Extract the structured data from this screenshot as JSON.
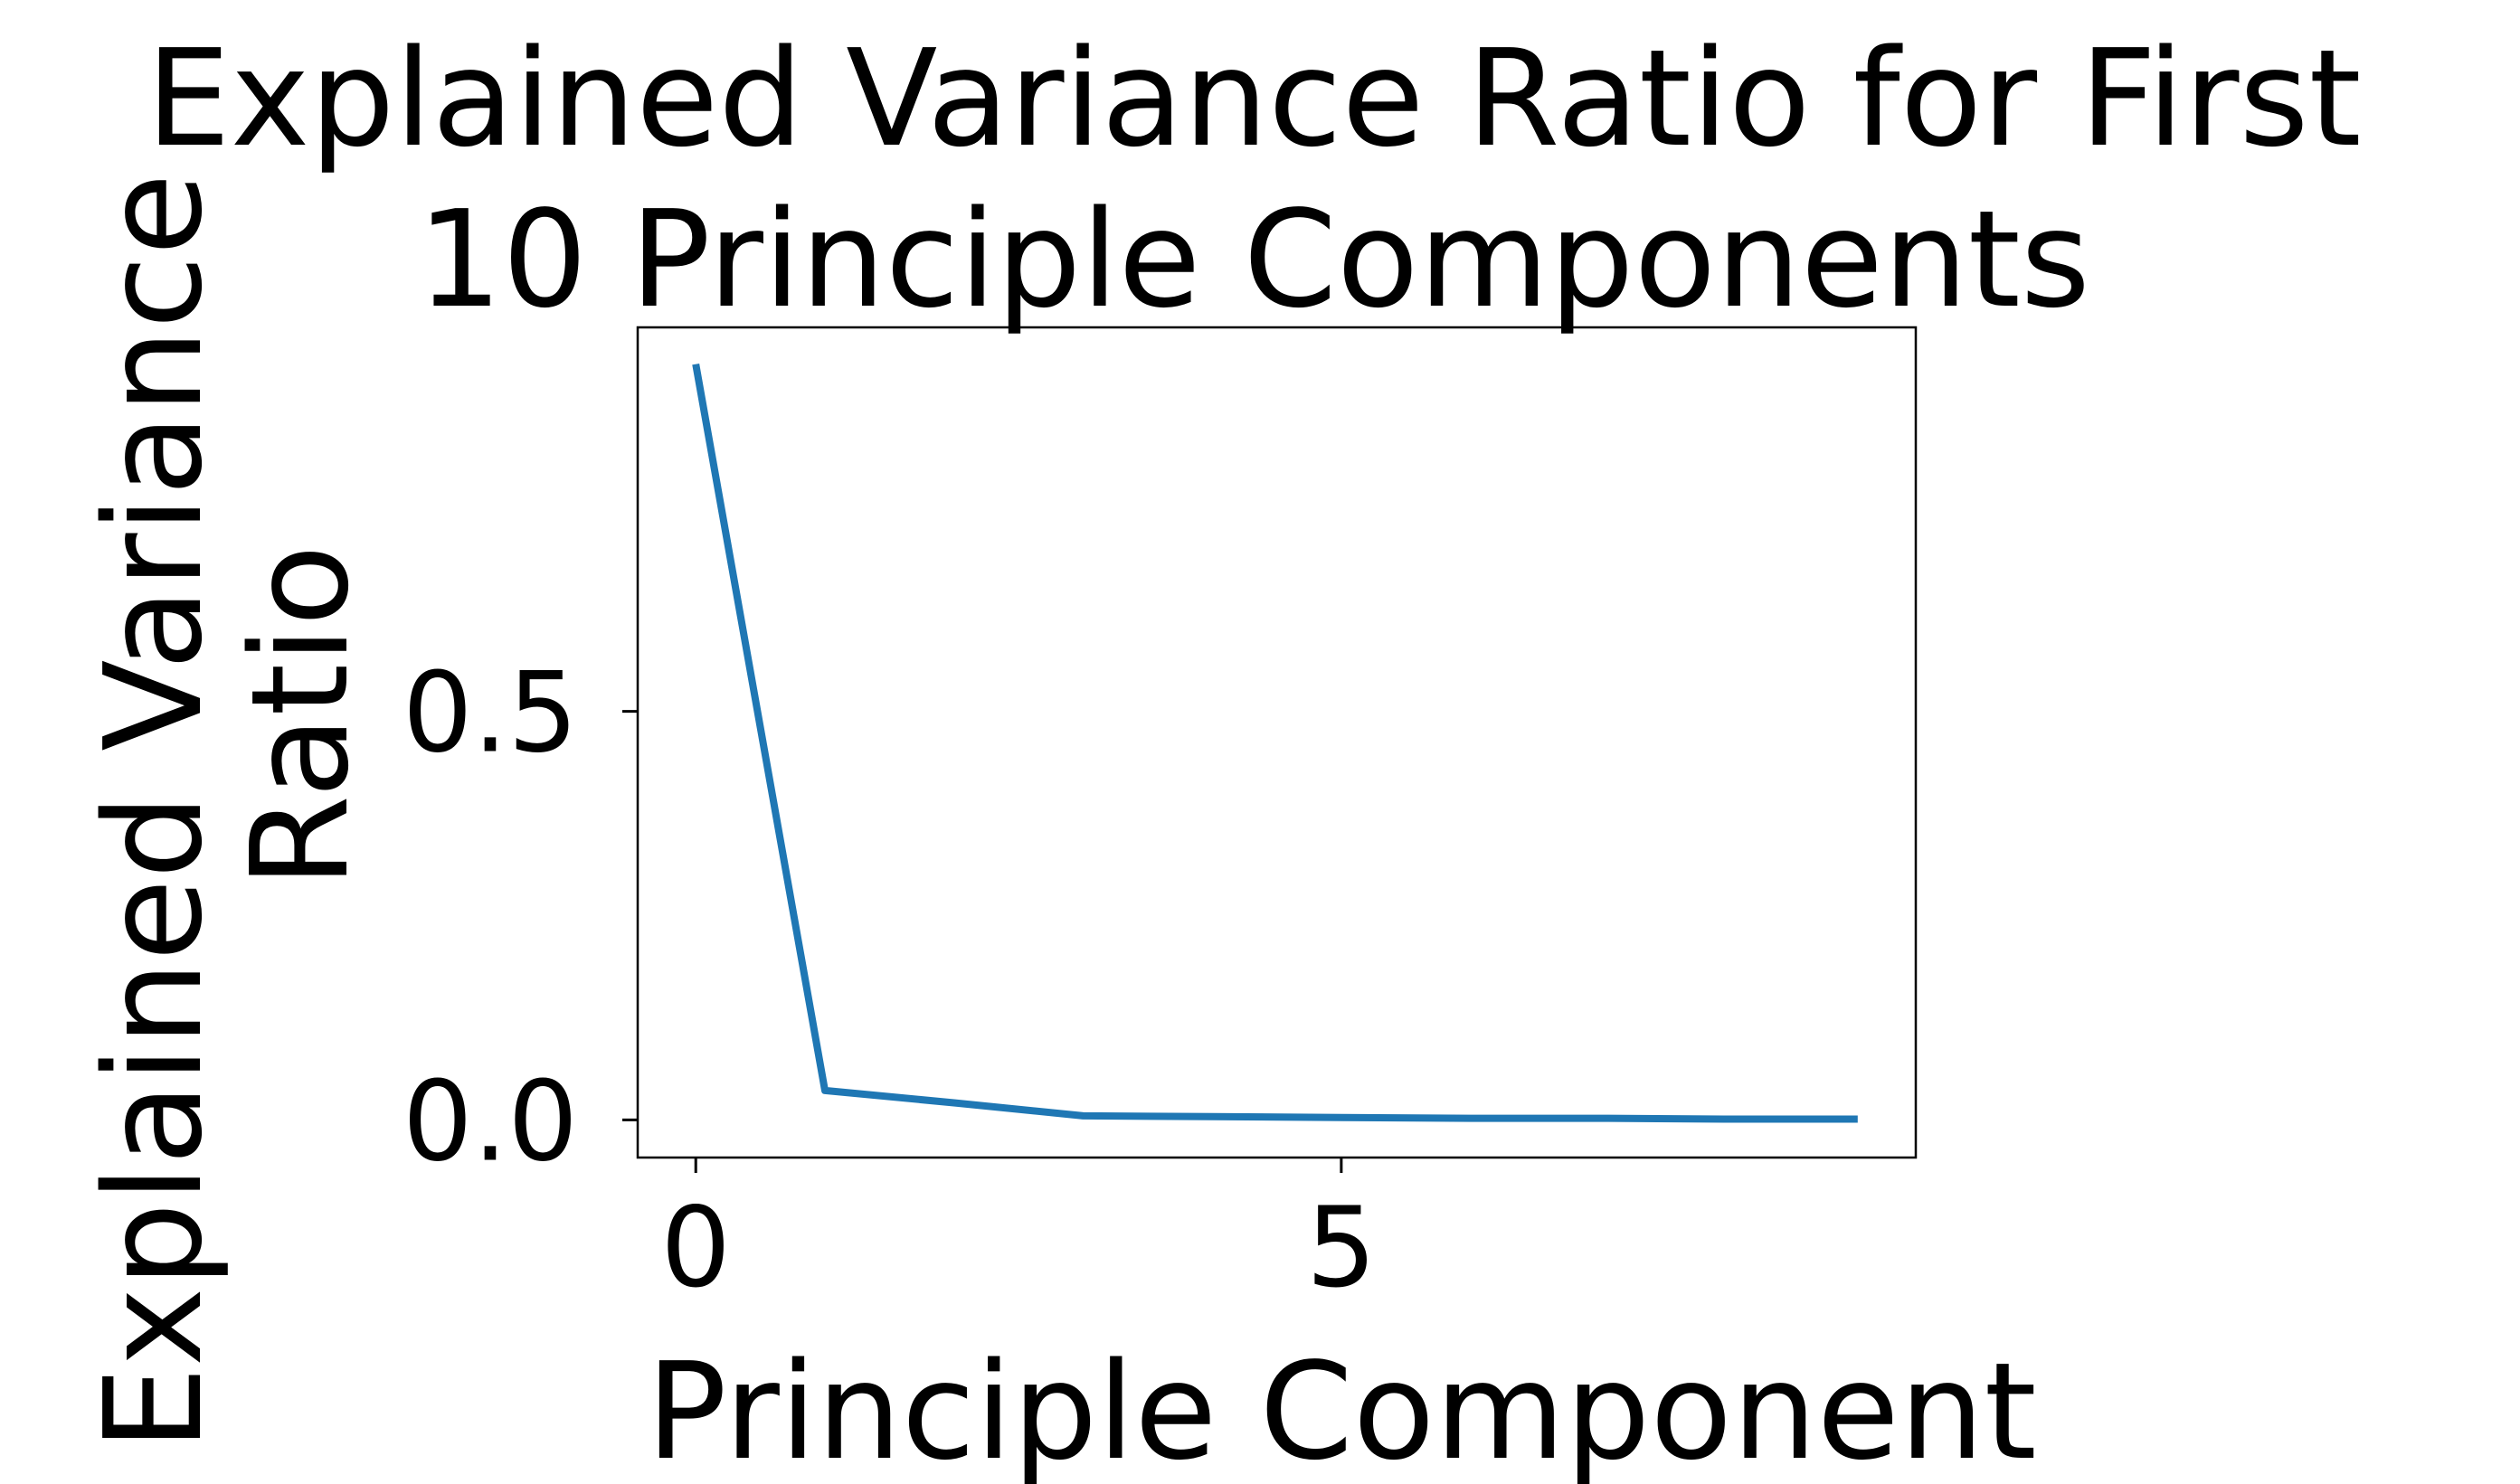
{
  "chart_data": {
    "type": "line",
    "title_lines": [
      "Explained Variance Ratio for First",
      "10 Principle Components"
    ],
    "xlabel": "Principle Component",
    "ylabel_lines": [
      "Explained Variance",
      "Ratio"
    ],
    "x": [
      0,
      1,
      2,
      3,
      4,
      5,
      6,
      7,
      8,
      9
    ],
    "series": [
      {
        "values": [
          0.925,
          0.036,
          0.021,
          0.005,
          0.004,
          0.003,
          0.002,
          0.002,
          0.001,
          0.001
        ]
      }
    ],
    "xlim": [
      -0.45,
      9.45
    ],
    "ylim": [
      -0.046,
      0.97
    ],
    "xticks": [
      0,
      5
    ],
    "yticks": [
      0.0,
      0.5
    ],
    "xtick_labels": [
      "0",
      "5"
    ],
    "ytick_labels": [
      "0.0",
      "0.5"
    ],
    "grid": false,
    "line_color": "#1f77b4"
  }
}
